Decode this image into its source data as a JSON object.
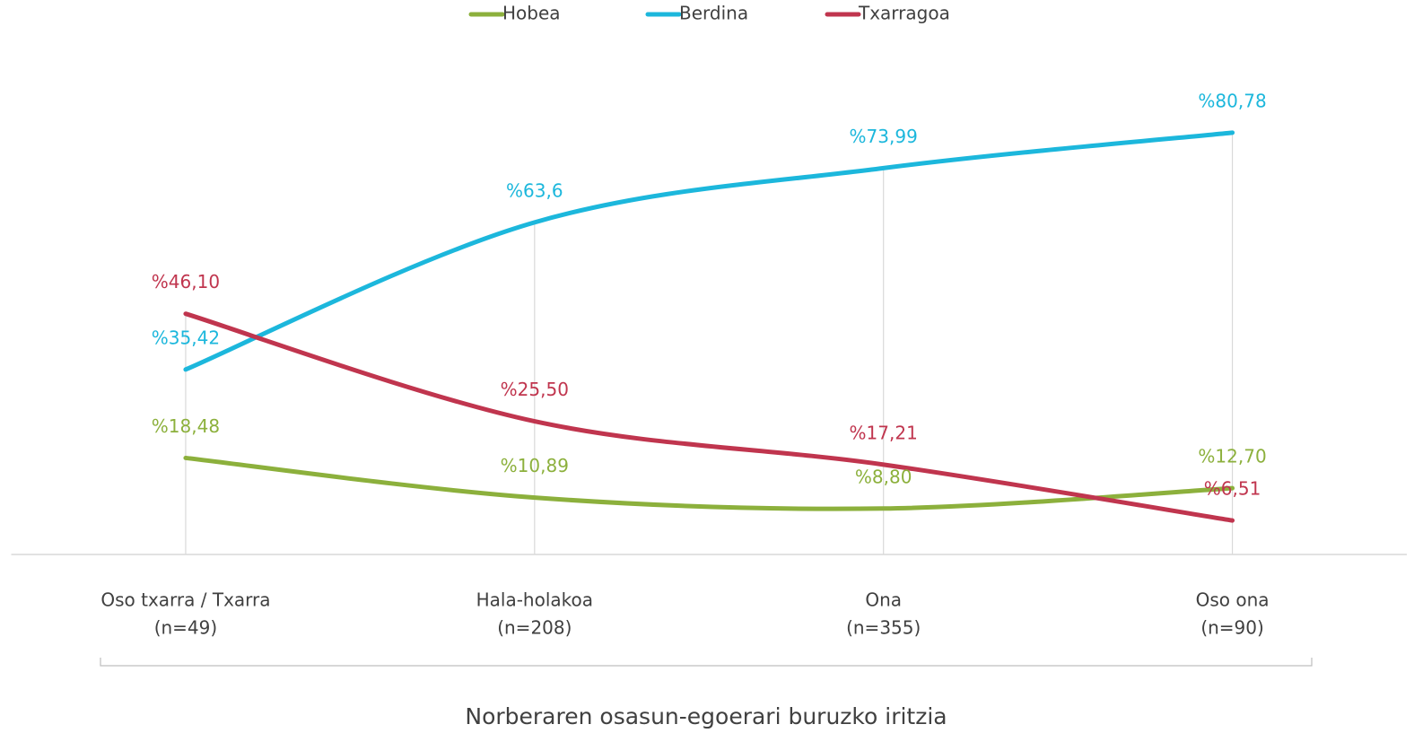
{
  "chart_data": {
    "type": "line",
    "categories": [
      [
        "Oso txarra / Txarra",
        "(n=49)"
      ],
      [
        "Hala-holakoa",
        "(n=208)"
      ],
      [
        "Ona",
        "(n=355)"
      ],
      [
        "Oso ona",
        "(n=90)"
      ]
    ],
    "x_axis_label": "Norberaren osasun-egoerari buruzko iritzia",
    "ylim": [
      0,
      100
    ],
    "smooth": true,
    "series": [
      {
        "name": "Hobea",
        "color": "#8cb03c",
        "values": [
          18.48,
          10.89,
          8.8,
          12.7
        ],
        "value_labels": [
          "%18,48",
          "%10,89",
          "%8,80",
          "%12,70"
        ]
      },
      {
        "name": "Berdina",
        "color": "#1cb7dc",
        "values": [
          35.42,
          63.6,
          73.99,
          80.78
        ],
        "value_labels": [
          "%35,42",
          "%63,6",
          "%73,99",
          "%80,78"
        ]
      },
      {
        "name": "Txarragoa",
        "color": "#c0354e",
        "values": [
          46.1,
          25.5,
          17.21,
          6.51
        ],
        "value_labels": [
          "%46,10",
          "%25,50",
          "%17,21",
          "%6,51"
        ]
      }
    ]
  }
}
